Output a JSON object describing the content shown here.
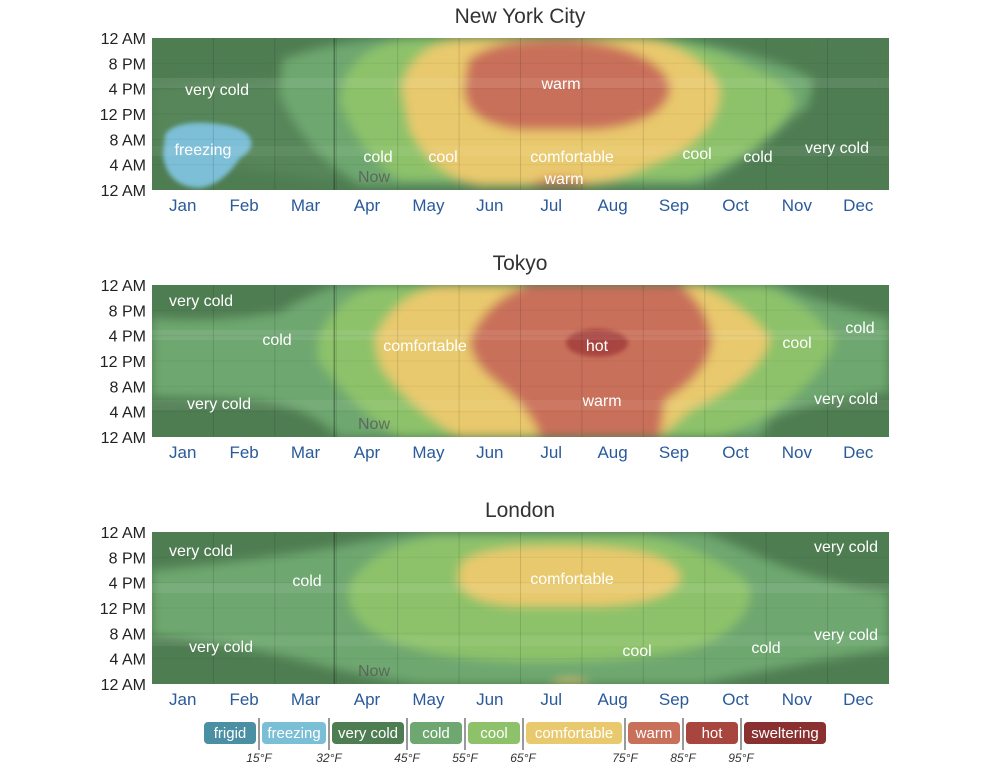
{
  "chart_data": [
    {
      "type": "heatmap",
      "title": "New York City",
      "y_ticks": [
        "12 AM",
        "8 PM",
        "4 PM",
        "12 PM",
        "8 AM",
        "4 AM",
        "12 AM"
      ],
      "x_ticks": [
        "Jan",
        "Feb",
        "Mar",
        "Apr",
        "May",
        "Jun",
        "Jul",
        "Aug",
        "Sep",
        "Oct",
        "Nov",
        "Dec"
      ],
      "now_label": "Now",
      "regions": [
        {
          "label": "very cold",
          "category": "very cold"
        },
        {
          "label": "freezing",
          "category": "freezing"
        },
        {
          "label": "cold",
          "category": "cold"
        },
        {
          "label": "cool",
          "category": "cool"
        },
        {
          "label": "comfortable",
          "category": "comfortable"
        },
        {
          "label": "warm",
          "category": "warm"
        },
        {
          "label": "warm",
          "category": "warm"
        },
        {
          "label": "cool",
          "category": "cool"
        },
        {
          "label": "cold",
          "category": "cold"
        },
        {
          "label": "very cold",
          "category": "very cold"
        }
      ]
    },
    {
      "type": "heatmap",
      "title": "Tokyo",
      "y_ticks": [
        "12 AM",
        "8 PM",
        "4 PM",
        "12 PM",
        "8 AM",
        "4 AM",
        "12 AM"
      ],
      "x_ticks": [
        "Jan",
        "Feb",
        "Mar",
        "Apr",
        "May",
        "Jun",
        "Jul",
        "Aug",
        "Sep",
        "Oct",
        "Nov",
        "Dec"
      ],
      "now_label": "Now",
      "regions": [
        {
          "label": "very cold",
          "category": "very cold"
        },
        {
          "label": "cold",
          "category": "cold"
        },
        {
          "label": "very cold",
          "category": "very cold"
        },
        {
          "label": "comfortable",
          "category": "comfortable"
        },
        {
          "label": "hot",
          "category": "hot"
        },
        {
          "label": "warm",
          "category": "warm"
        },
        {
          "label": "cool",
          "category": "cool"
        },
        {
          "label": "cold",
          "category": "cold"
        },
        {
          "label": "very cold",
          "category": "very cold"
        }
      ]
    },
    {
      "type": "heatmap",
      "title": "London",
      "y_ticks": [
        "12 AM",
        "8 PM",
        "4 PM",
        "12 PM",
        "8 AM",
        "4 AM",
        "12 AM"
      ],
      "x_ticks": [
        "Jan",
        "Feb",
        "Mar",
        "Apr",
        "May",
        "Jun",
        "Jul",
        "Aug",
        "Sep",
        "Oct",
        "Nov",
        "Dec"
      ],
      "now_label": "Now",
      "regions": [
        {
          "label": "very cold",
          "category": "very cold"
        },
        {
          "label": "cold",
          "category": "cold"
        },
        {
          "label": "very cold",
          "category": "very cold"
        },
        {
          "label": "comfortable",
          "category": "comfortable"
        },
        {
          "label": "cool",
          "category": "cool"
        },
        {
          "label": "cold",
          "category": "cold"
        },
        {
          "label": "very cold",
          "category": "very cold"
        },
        {
          "label": "very cold",
          "category": "very cold"
        }
      ]
    }
  ],
  "legend": {
    "categories": [
      {
        "name": "frigid",
        "color": "#4a8fa3"
      },
      {
        "name": "freezing",
        "color": "#7bbfd6"
      },
      {
        "name": "very cold",
        "color": "#4f7d52"
      },
      {
        "name": "cold",
        "color": "#6ea770"
      },
      {
        "name": "cool",
        "color": "#8dc26a"
      },
      {
        "name": "comfortable",
        "color": "#e9c96d"
      },
      {
        "name": "warm",
        "color": "#c9705a"
      },
      {
        "name": "hot",
        "color": "#a8453f"
      },
      {
        "name": "sweltering",
        "color": "#8a3030"
      }
    ],
    "thresholds": [
      "15°F",
      "32°F",
      "45°F",
      "55°F",
      "65°F",
      "75°F",
      "85°F",
      "95°F"
    ]
  }
}
